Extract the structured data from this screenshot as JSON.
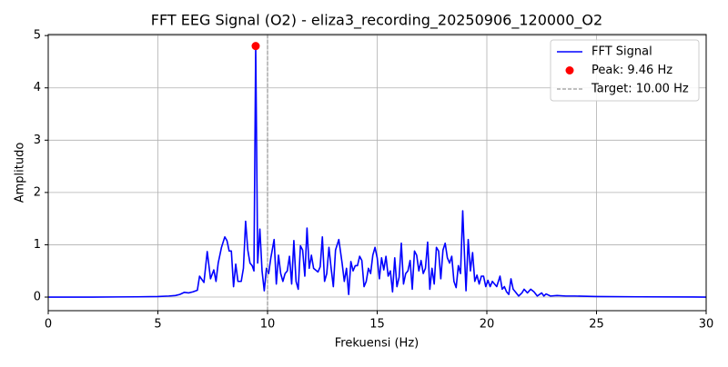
{
  "chart_data": {
    "type": "line",
    "title": "FFT EEG Signal (O2) - eliza3_recording_20250906_120000_O2",
    "x_label": "Frekuensi (Hz)",
    "y_label": "Amplitudo",
    "x": [
      0,
      2,
      4,
      5,
      5.5,
      5.8,
      6.0,
      6.2,
      6.4,
      6.6,
      6.8,
      6.9,
      7.1,
      7.25,
      7.4,
      7.55,
      7.65,
      7.75,
      7.9,
      8.05,
      8.15,
      8.25,
      8.35,
      8.45,
      8.55,
      8.65,
      8.8,
      8.9,
      9.0,
      9.1,
      9.2,
      9.3,
      9.38,
      9.46,
      9.55,
      9.65,
      9.75,
      9.85,
      9.95,
      10.05,
      10.15,
      10.3,
      10.4,
      10.5,
      10.6,
      10.7,
      10.8,
      10.9,
      11.0,
      11.1,
      11.2,
      11.3,
      11.4,
      11.5,
      11.6,
      11.7,
      11.8,
      11.9,
      12.0,
      12.1,
      12.3,
      12.4,
      12.5,
      12.6,
      12.7,
      12.8,
      12.9,
      13.0,
      13.1,
      13.25,
      13.4,
      13.5,
      13.6,
      13.7,
      13.8,
      13.9,
      14.0,
      14.1,
      14.2,
      14.3,
      14.4,
      14.5,
      14.6,
      14.7,
      14.8,
      14.9,
      15.0,
      15.1,
      15.2,
      15.3,
      15.4,
      15.5,
      15.6,
      15.7,
      15.8,
      15.9,
      16.0,
      16.1,
      16.2,
      16.3,
      16.4,
      16.5,
      16.6,
      16.7,
      16.8,
      16.9,
      17.0,
      17.1,
      17.2,
      17.3,
      17.4,
      17.5,
      17.6,
      17.7,
      17.8,
      17.9,
      18.0,
      18.1,
      18.2,
      18.3,
      18.4,
      18.5,
      18.6,
      18.7,
      18.8,
      18.9,
      19.0,
      19.05,
      19.15,
      19.25,
      19.35,
      19.45,
      19.55,
      19.65,
      19.75,
      19.85,
      19.95,
      20.05,
      20.15,
      20.25,
      20.35,
      20.45,
      20.6,
      20.7,
      20.8,
      20.9,
      21.0,
      21.1,
      21.2,
      21.3,
      21.45,
      21.6,
      21.7,
      21.85,
      22.0,
      22.15,
      22.3,
      22.5,
      22.6,
      22.7,
      22.9,
      23.2,
      23.6,
      24,
      25,
      27,
      30
    ],
    "series": [
      {
        "name": "FFT Signal",
        "color": "#0000ff",
        "values": [
          0,
          0,
          0.005,
          0.01,
          0.02,
          0.03,
          0.05,
          0.09,
          0.08,
          0.1,
          0.13,
          0.4,
          0.28,
          0.87,
          0.35,
          0.52,
          0.3,
          0.65,
          0.95,
          1.15,
          1.08,
          0.88,
          0.88,
          0.2,
          0.63,
          0.3,
          0.3,
          0.55,
          1.45,
          0.9,
          0.65,
          0.6,
          0.5,
          4.8,
          0.65,
          1.3,
          0.5,
          0.12,
          0.55,
          0.45,
          0.75,
          1.1,
          0.25,
          0.8,
          0.45,
          0.3,
          0.45,
          0.5,
          0.78,
          0.25,
          1.08,
          0.3,
          0.15,
          0.98,
          0.9,
          0.4,
          1.32,
          0.55,
          0.8,
          0.55,
          0.48,
          0.58,
          1.15,
          0.3,
          0.45,
          0.95,
          0.55,
          0.2,
          0.9,
          1.1,
          0.65,
          0.3,
          0.55,
          0.05,
          0.68,
          0.5,
          0.6,
          0.6,
          0.78,
          0.7,
          0.2,
          0.3,
          0.55,
          0.45,
          0.8,
          0.95,
          0.75,
          0.35,
          0.75,
          0.52,
          0.78,
          0.4,
          0.5,
          0.1,
          0.75,
          0.2,
          0.38,
          1.03,
          0.25,
          0.45,
          0.5,
          0.7,
          0.15,
          0.88,
          0.8,
          0.5,
          0.7,
          0.45,
          0.55,
          1.05,
          0.15,
          0.55,
          0.25,
          0.95,
          0.88,
          0.35,
          0.9,
          1.03,
          0.75,
          0.65,
          0.78,
          0.3,
          0.18,
          0.6,
          0.45,
          1.65,
          0.6,
          0.12,
          1.1,
          0.5,
          0.85,
          0.3,
          0.42,
          0.25,
          0.4,
          0.4,
          0.2,
          0.32,
          0.2,
          0.3,
          0.25,
          0.2,
          0.4,
          0.15,
          0.2,
          0.1,
          0.05,
          0.35,
          0.15,
          0.1,
          0.02,
          0.08,
          0.15,
          0.08,
          0.15,
          0.1,
          0.02,
          0.08,
          0.02,
          0.06,
          0.02,
          0.03,
          0.02,
          0.02,
          0.01,
          0.005,
          0
        ]
      }
    ],
    "peak": {
      "name": "Peak: 9.46 Hz",
      "x": 9.46,
      "value": 4.8,
      "color": "#ff0000"
    },
    "target": {
      "name": "Target: 10.00 Hz",
      "x": 10,
      "color": "#808080"
    },
    "xlim": [
      0,
      30
    ],
    "ylim": [
      -0.26,
      5.02
    ],
    "xticks": [
      0,
      5,
      10,
      15,
      20,
      25,
      30
    ],
    "yticks": [
      0,
      1,
      2,
      3,
      4,
      5
    ],
    "grid": true,
    "legend": "upper-right"
  }
}
